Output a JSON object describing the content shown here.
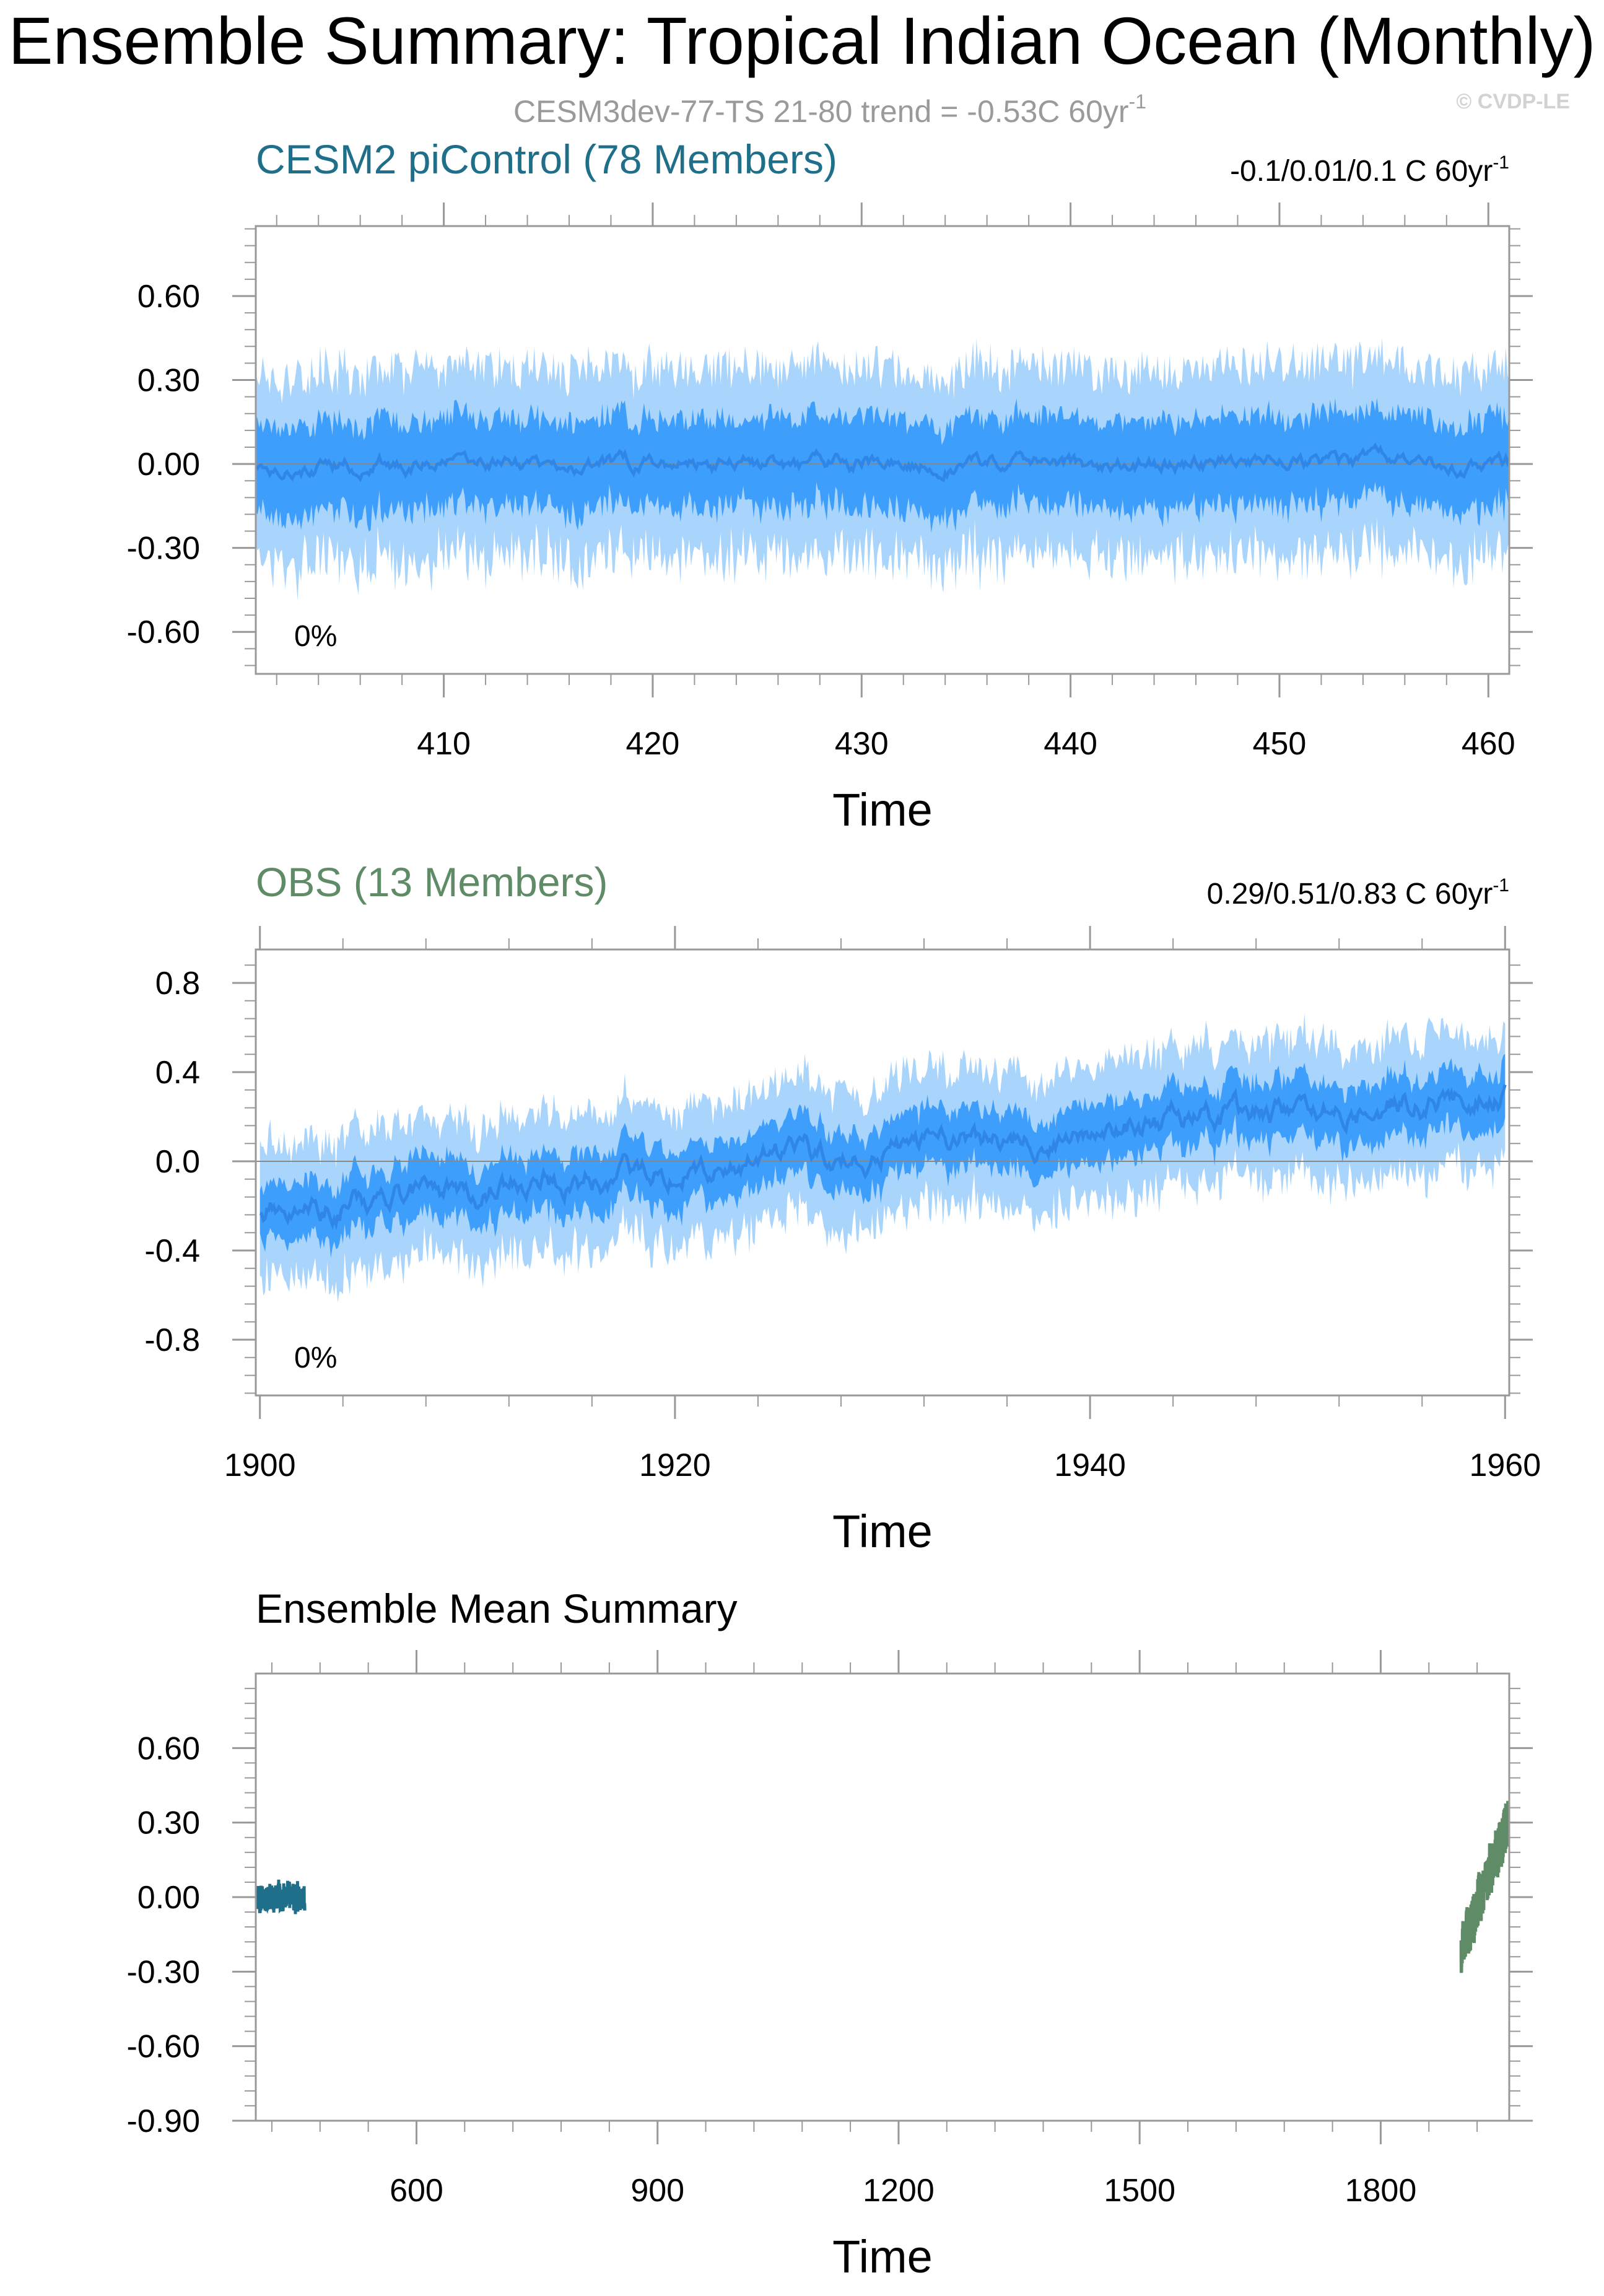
{
  "page": {
    "title": "Ensemble Summary: Tropical Indian Ocean (Monthly)",
    "subtitle_main": "CESM3dev-77-TS 21-80 trend = -0.53C 60yr",
    "subtitle_sup": "-1",
    "watermark": "© CVDP-LE"
  },
  "colors": {
    "band_outer": "#a9d4fb",
    "band_inner": "#3d9ffb",
    "mean_line": "#2f86e6",
    "cesm2": "#1f6f8b",
    "obs": "#5f8c66",
    "axis": "#999999"
  },
  "chart_data": [
    {
      "id": "panel1",
      "type": "area",
      "title": "CESM2 piControl (78 Members)",
      "title_color": "#1f6f8b",
      "trend_text": "-0.1/0.01/0.1 C 60yr",
      "trend_sup": "-1",
      "pct_text": "0%",
      "xlabel": "Time",
      "xlim": [
        401,
        461
      ],
      "ylim": [
        -0.75,
        0.85
      ],
      "xticks": [
        410,
        420,
        430,
        440,
        450,
        460
      ],
      "xtick_labels": [
        "410",
        "420",
        "430",
        "440",
        "450",
        "460"
      ],
      "yticks": [
        0.6,
        0.3,
        0,
        -0.3,
        -0.6
      ],
      "ytick_labels": [
        "0.60",
        "0.30",
        "0.00",
        "-0.30",
        "-0.60"
      ],
      "zero_line": true,
      "series": [
        {
          "role": "mean",
          "trend_per_60yr": 0.0,
          "start": 0.0,
          "mean_amp": 0.03
        },
        {
          "role": "inner_spread",
          "half_width": 0.16
        },
        {
          "role": "outer_spread",
          "half_width": 0.33
        }
      ]
    },
    {
      "id": "panel2",
      "type": "area",
      "title": "OBS (13 Members)",
      "title_color": "#5f8c66",
      "trend_text": "0.29/0.51/0.83 C 60yr",
      "trend_sup": "-1",
      "pct_text": "0%",
      "xlabel": "Time",
      "xlim": [
        1899.8,
        1960.2
      ],
      "ylim": [
        -1.05,
        0.95
      ],
      "xticks": [
        1900,
        1920,
        1940,
        1960
      ],
      "xtick_labels": [
        "1900",
        "1920",
        "1940",
        "1960"
      ],
      "yticks": [
        0.8,
        0.4,
        0.0,
        -0.4,
        -0.8
      ],
      "ytick_labels": [
        "0.8",
        "0.4",
        "0.0",
        "-0.4",
        "-0.8"
      ],
      "zero_line": true,
      "series": [
        {
          "role": "mean",
          "start": -0.22,
          "end": 0.32,
          "mean_amp": 0.06
        },
        {
          "role": "inner_spread",
          "half_width": 0.13
        },
        {
          "role": "outer_spread",
          "half_width": 0.3
        }
      ]
    },
    {
      "id": "panel3",
      "type": "line",
      "title": "Ensemble Mean Summary",
      "title_color": "#000000",
      "xlabel": "Time",
      "xlim": [
        400,
        1960
      ],
      "ylim": [
        -0.9,
        0.9
      ],
      "xticks": [
        600,
        900,
        1200,
        1500,
        1800
      ],
      "xtick_labels": [
        "600",
        "900",
        "1200",
        "1500",
        "1800"
      ],
      "yticks": [
        0.6,
        0.3,
        0.0,
        -0.3,
        -0.6,
        -0.9
      ],
      "ytick_labels": [
        "0.60",
        "0.30",
        "0.00",
        "-0.30",
        "-0.60",
        "-0.90"
      ],
      "series": [
        {
          "name": "CESM2 piControl",
          "color": "#1f6f8b",
          "x_range": [
            401,
            461
          ],
          "start": 0.0,
          "end": 0.0,
          "amp": 0.04
        },
        {
          "name": "OBS",
          "color": "#5f8c66",
          "x_range": [
            1900,
            1960
          ],
          "start": -0.22,
          "end": 0.32,
          "amp": 0.07
        }
      ]
    }
  ]
}
